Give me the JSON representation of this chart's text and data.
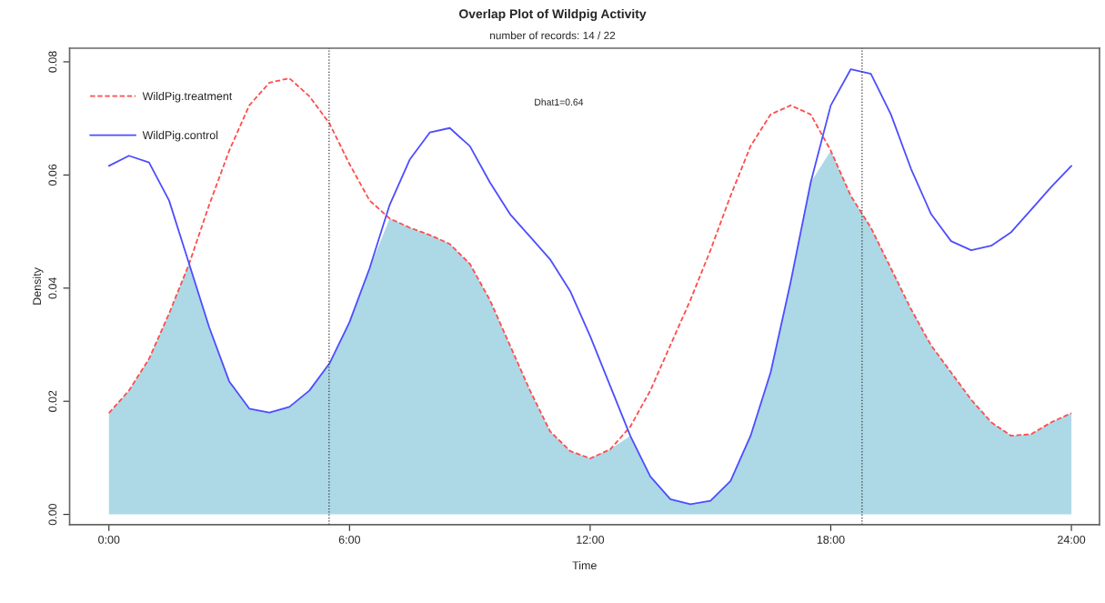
{
  "chart_data": {
    "type": "line",
    "title": "Overlap Plot of Wildpig Activity",
    "subtitle": "number of records: 14 / 22",
    "xlabel": "Time",
    "ylabel": "Density",
    "annotations": [
      "Dhat1=0.64"
    ],
    "x": [
      0,
      0.5,
      1,
      1.5,
      2,
      2.5,
      3,
      3.5,
      4,
      4.5,
      5,
      5.5,
      6,
      6.5,
      7,
      7.5,
      8,
      8.5,
      9,
      9.5,
      10,
      10.5,
      11,
      11.5,
      12,
      12.5,
      13,
      13.5,
      14,
      14.5,
      15,
      15.5,
      16,
      16.5,
      17,
      17.5,
      18,
      18.5,
      19,
      19.5,
      20,
      20.5,
      21,
      21.5,
      22,
      22.5,
      23,
      23.5,
      24
    ],
    "series": [
      {
        "type": "area",
        "color": "#add8e6",
        "values": [
          0.0179,
          0.0219,
          0.0275,
          0.0355,
          0.0443,
          0.0331,
          0.0235,
          0.0187,
          0.018,
          0.019,
          0.0219,
          0.0267,
          0.034,
          0.0435,
          0.0523,
          0.0507,
          0.0494,
          0.0478,
          0.0443,
          0.0379,
          0.0299,
          0.0219,
          0.0147,
          0.0112,
          0.0099,
          0.0115,
          0.0139,
          0.0067,
          0.0027,
          0.0018,
          0.0024,
          0.0059,
          0.0139,
          0.0251,
          0.0411,
          0.0587,
          0.0643,
          0.0563,
          0.0507,
          0.0435,
          0.0363,
          0.0299,
          0.0251,
          0.0203,
          0.0163,
          0.0139,
          0.0142,
          0.0163,
          0.0179
        ]
      },
      {
        "name": "WildPig.treatment",
        "color": "#ff4d4d",
        "line_style": "dashed",
        "values": [
          0.0179,
          0.0219,
          0.0275,
          0.0355,
          0.0443,
          0.0547,
          0.0643,
          0.0723,
          0.0763,
          0.0771,
          0.0739,
          0.0691,
          0.0619,
          0.0555,
          0.0523,
          0.0507,
          0.0494,
          0.0478,
          0.0443,
          0.0379,
          0.0299,
          0.0219,
          0.0147,
          0.0112,
          0.0099,
          0.0115,
          0.0155,
          0.0219,
          0.0299,
          0.0379,
          0.0467,
          0.0563,
          0.0651,
          0.0707,
          0.0723,
          0.0707,
          0.0643,
          0.0563,
          0.0507,
          0.0435,
          0.0363,
          0.0299,
          0.0251,
          0.0203,
          0.0163,
          0.0139,
          0.0142,
          0.0163,
          0.0179
        ]
      },
      {
        "name": "WildPig.control",
        "color": "#4d4dff",
        "line_style": "solid",
        "values": [
          0.0616,
          0.0634,
          0.0622,
          0.0555,
          0.0443,
          0.0331,
          0.0235,
          0.0187,
          0.018,
          0.019,
          0.0219,
          0.0267,
          0.034,
          0.0435,
          0.0547,
          0.0627,
          0.0675,
          0.0683,
          0.0651,
          0.0587,
          0.0531,
          0.0491,
          0.0451,
          0.0395,
          0.0315,
          0.0227,
          0.0139,
          0.0067,
          0.0027,
          0.0018,
          0.0024,
          0.0059,
          0.0139,
          0.0251,
          0.0411,
          0.0587,
          0.0723,
          0.0787,
          0.0779,
          0.0707,
          0.0611,
          0.0531,
          0.0483,
          0.0467,
          0.0475,
          0.0499,
          0.0539,
          0.0579,
          0.0616
        ]
      }
    ],
    "ref_lines": [
      {
        "axis": "x",
        "value": 5.49,
        "color": "#333333",
        "line_style": "dotted"
      },
      {
        "axis": "x",
        "value": 18.78,
        "color": "#333333",
        "line_style": "dotted"
      }
    ],
    "xlim": [
      -0.98,
      24.7
    ],
    "ylim": [
      -0.0018,
      0.0824
    ],
    "xticks": [
      {
        "value": 0,
        "label": "0:00"
      },
      {
        "value": 6,
        "label": "6:00"
      },
      {
        "value": 12,
        "label": "12:00"
      },
      {
        "value": 18,
        "label": "18:00"
      },
      {
        "value": 24,
        "label": "24:00"
      }
    ],
    "yticks": [
      {
        "value": 0,
        "label": "0.00"
      },
      {
        "value": 0.02,
        "label": "0.02"
      },
      {
        "value": 0.04,
        "label": "0.04"
      },
      {
        "value": 0.06,
        "label": "0.06"
      },
      {
        "value": 0.08,
        "label": "0.08"
      }
    ],
    "legend": "top left",
    "grid": false
  }
}
